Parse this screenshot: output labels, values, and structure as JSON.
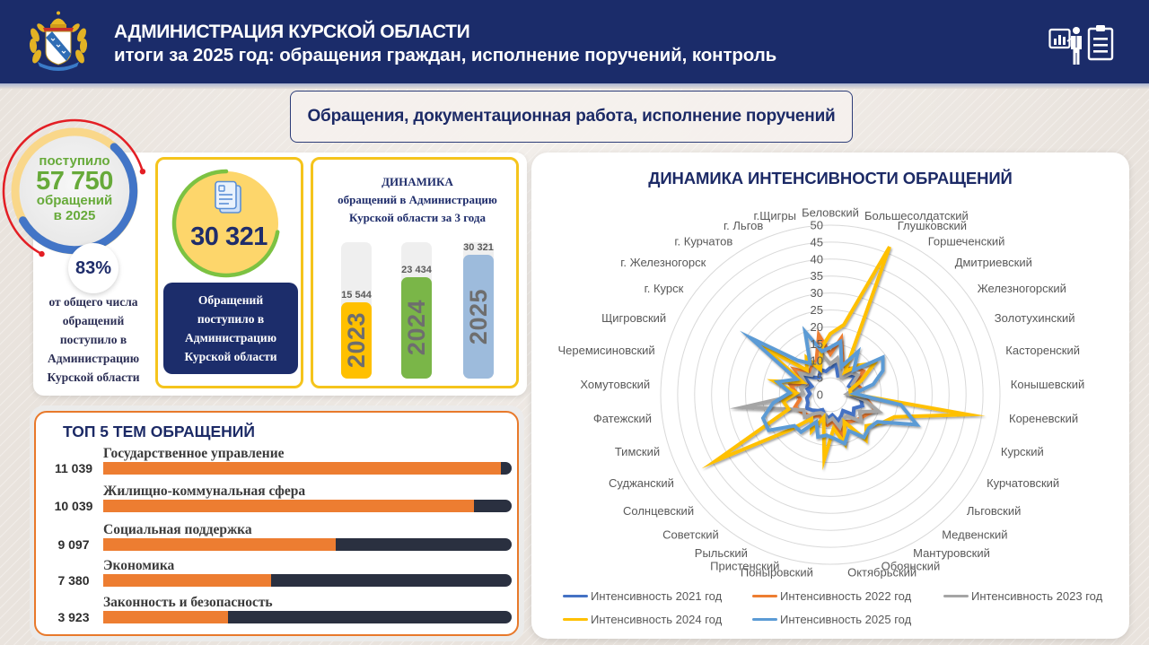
{
  "header": {
    "title": "АДМИНИСТРАЦИЯ КУРСКОЙ ОБЛАСТИ",
    "subtitle": "итоги за 2025 год: обращения граждан, исполнение поручений, контроль",
    "logo_icon": "kursk-oblast-coat-of-arms-icon",
    "right_icons": [
      "presentation-icon",
      "clipboard-icon"
    ],
    "background_color": "#1b2c6a"
  },
  "section": {
    "title": "Обращения, документационная работа, исполнение поручений"
  },
  "total_card": {
    "label_top": "поступило",
    "value": "57 750",
    "label_mid": "обращений",
    "label_year": "в 2025",
    "percent": "83%",
    "description_lines": [
      "от общего числа",
      "обращений",
      "поступило в",
      "Администрацию",
      "Курской области"
    ]
  },
  "admin_card": {
    "icon": "document-icon",
    "value": "30 321",
    "description_lines": [
      "Обращений",
      "поступило в",
      "Администрацию",
      "Курской области"
    ]
  },
  "colors": {
    "navy": "#1b2c6a",
    "accent_yellow": "#f5c41c",
    "accent_orange": "#e8792b",
    "accent_green": "#67aa3a",
    "ring_blue": "#4275c7",
    "ring_red": "#e31e24"
  },
  "chart_data": [
    {
      "type": "radar",
      "title": "ДИНАМИКА ИНТЕНСИВНОСТИ ОБРАЩЕНИЙ",
      "categories": [
        "Беловский",
        "Большесолдатский",
        "Глушковский",
        "Горшеченский",
        "Дмитриевский",
        "Железногорский",
        "Золотухинский",
        "Касторенский",
        "Конышевский",
        "Кореневский",
        "Курский",
        "Курчатовский",
        "Льговский",
        "Медвенский",
        "Мантуровский",
        "Обоянский",
        "Октябрьский",
        "Поныровский",
        "Пристенский",
        "Рыльский",
        "Советский",
        "Солнцевский",
        "Суджанский",
        "Тимский",
        "Фатежский",
        "Хомутовский",
        "Черемисиновский",
        "Щигровский",
        "г. Курск",
        "г. Железногорск",
        "г. Курчатов",
        "г. Льгов",
        "г.Щигры"
      ],
      "r_ticks": [
        0,
        5,
        10,
        15,
        20,
        25,
        30,
        35,
        40,
        45,
        50
      ],
      "rlim": [
        0,
        50
      ],
      "grid": true,
      "legend_position": "bottom",
      "series": [
        {
          "name": "Интенсивность 2021 год",
          "color": "#4472c4",
          "values": [
            8,
            9,
            6,
            7,
            8,
            9,
            6,
            7,
            5,
            9,
            10,
            8,
            9,
            6,
            7,
            8,
            6,
            7,
            6,
            5,
            6,
            7,
            8,
            7,
            7,
            6,
            7,
            6,
            10,
            7,
            6,
            8,
            7
          ]
        },
        {
          "name": "Интенсивность 2022 год",
          "color": "#ed7d31",
          "values": [
            12,
            17,
            10,
            9,
            11,
            12,
            8,
            9,
            6,
            11,
            14,
            12,
            11,
            10,
            9,
            12,
            8,
            9,
            8,
            7,
            8,
            9,
            10,
            11,
            9,
            10,
            12,
            8,
            13,
            9,
            10,
            11,
            18
          ]
        },
        {
          "name": "Интенсивность 2023 год",
          "color": "#a5a5a5",
          "values": [
            9,
            11,
            8,
            6,
            9,
            10,
            7,
            8,
            5,
            10,
            15,
            10,
            12,
            8,
            8,
            10,
            7,
            8,
            6,
            6,
            7,
            10,
            9,
            13,
            26,
            8,
            9,
            8,
            11,
            8,
            9,
            10,
            12
          ]
        },
        {
          "name": "Интенсивность 2024 год",
          "color": "#ffc000",
          "values": [
            18,
            21,
            47,
            8,
            12,
            16,
            10,
            6,
            6,
            41,
            20,
            17,
            14,
            17,
            9,
            15,
            10,
            19,
            7,
            12,
            9,
            16,
            39,
            13,
            14,
            10,
            17,
            9,
            24,
            10,
            13,
            8,
            14
          ]
        },
        {
          "name": "Интенсивность 2025 год",
          "color": "#5b9bd5",
          "values": [
            14,
            16,
            9,
            15,
            10,
            19,
            17,
            13,
            7,
            21,
            27,
            16,
            15,
            16,
            12,
            15,
            13,
            12,
            13,
            9,
            14,
            14,
            21,
            21,
            17,
            12,
            16,
            11,
            29,
            14,
            11,
            20,
            13
          ]
        }
      ]
    },
    {
      "type": "bar",
      "title_lines": [
        "ДИНАМИКА",
        "обращений в Администрацию",
        "Курской области за 3 года"
      ],
      "categories": [
        "2023",
        "2024",
        "2025"
      ],
      "values": [
        15544,
        23434,
        30321
      ],
      "value_labels": [
        "15 544",
        "23 434",
        "30 321"
      ],
      "colors": [
        "#ffc000",
        "#7ab648",
        "#9dbbdc"
      ],
      "xlabel": "",
      "ylabel": ""
    },
    {
      "type": "bar",
      "orientation": "horizontal",
      "title": "ТОП 5 ТЕМ ОБРАЩЕНИЙ",
      "categories": [
        "Государственное управление",
        "Жилищно-коммунальная сфера",
        "Социальная поддержка",
        "Экономика",
        "Законность и безопасность"
      ],
      "values": [
        11039,
        10039,
        9097,
        7380,
        3923
      ],
      "value_labels": [
        "11 039",
        "10 039",
        "9 097",
        "7 380",
        "3 923"
      ],
      "fill_pct": [
        97.4,
        90.8,
        56.9,
        41.1,
        30.5
      ],
      "colors": {
        "fill": "#ed7d31",
        "track": "#2a3040"
      }
    }
  ]
}
